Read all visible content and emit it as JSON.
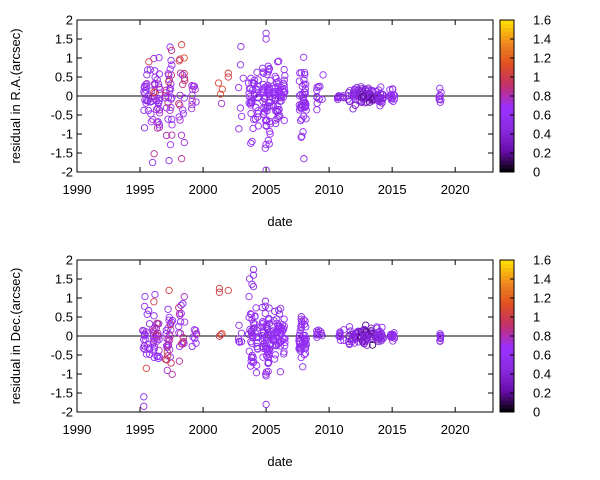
{
  "chart_data": [
    {
      "type": "scatter",
      "xlabel": "date",
      "ylabel": "residual in R.A.(arcsec)",
      "xlim": [
        1990,
        2023
      ],
      "ylim": [
        -2,
        2
      ],
      "xticks": [
        "1990",
        "1995",
        "2000",
        "2005",
        "2010",
        "2015",
        "2020"
      ],
      "yticks": [
        "-2",
        "-1.5",
        "-1",
        "-0.5",
        "0",
        "0.5",
        "1",
        "1.5",
        "2"
      ],
      "colorbar": {
        "range": [
          0,
          1.6
        ],
        "ticks": [
          "0",
          "0.2",
          "0.4",
          "0.6",
          "0.8",
          "1",
          "1.2",
          "1.4",
          "1.6"
        ],
        "palette": [
          "#000000",
          "#6a0dad",
          "#8a2be2",
          "#9b30ff",
          "#c0306a",
          "#e05020",
          "#f08c20",
          "#ffe000"
        ]
      },
      "zero_line": true,
      "clusters": [
        {
          "x": 1995.6,
          "spread": 0.3,
          "n": 26,
          "ysd": 0.45,
          "cmin": 0.45,
          "cmax": 0.75
        },
        {
          "x": 1996.3,
          "spread": 0.3,
          "n": 34,
          "ysd": 0.45,
          "cmin": 0.45,
          "cmax": 0.9
        },
        {
          "x": 1997.3,
          "spread": 0.3,
          "n": 30,
          "ysd": 0.55,
          "cmin": 0.45,
          "cmax": 1.0
        },
        {
          "x": 1998.3,
          "spread": 0.25,
          "n": 18,
          "ysd": 0.6,
          "cmin": 0.5,
          "cmax": 1.1
        },
        {
          "x": 1999.3,
          "spread": 0.2,
          "n": 10,
          "ysd": 0.2,
          "cmin": 0.5,
          "cmax": 0.9
        },
        {
          "x": 2001.5,
          "spread": 0.3,
          "n": 4,
          "ysd": 0.3,
          "cmin": 0.7,
          "cmax": 1.1
        },
        {
          "x": 2003,
          "spread": 0.2,
          "n": 6,
          "ysd": 0.6,
          "cmin": 0.45,
          "cmax": 0.65
        },
        {
          "x": 2004,
          "spread": 0.4,
          "n": 40,
          "ysd": 0.45,
          "cmin": 0.45,
          "cmax": 0.7
        },
        {
          "x": 2005,
          "spread": 0.35,
          "n": 55,
          "ysd": 0.55,
          "cmin": 0.45,
          "cmax": 0.7
        },
        {
          "x": 2006,
          "spread": 0.5,
          "n": 60,
          "ysd": 0.35,
          "cmin": 0.45,
          "cmax": 0.7
        },
        {
          "x": 2007.9,
          "spread": 0.3,
          "n": 45,
          "ysd": 0.45,
          "cmin": 0.45,
          "cmax": 0.65
        },
        {
          "x": 2009.3,
          "spread": 0.3,
          "n": 12,
          "ysd": 0.2,
          "cmin": 0.45,
          "cmax": 0.6
        },
        {
          "x": 2010.9,
          "spread": 0.3,
          "n": 10,
          "ysd": 0.05,
          "cmin": 0.45,
          "cmax": 0.6
        },
        {
          "x": 2012,
          "spread": 0.5,
          "n": 30,
          "ysd": 0.1,
          "cmin": 0.3,
          "cmax": 0.6
        },
        {
          "x": 2013,
          "spread": 0.5,
          "n": 40,
          "ysd": 0.12,
          "cmin": 0.1,
          "cmax": 0.6
        },
        {
          "x": 2014,
          "spread": 0.3,
          "n": 24,
          "ysd": 0.1,
          "cmin": 0.3,
          "cmax": 0.6
        },
        {
          "x": 2015,
          "spread": 0.2,
          "n": 14,
          "ysd": 0.12,
          "cmin": 0.45,
          "cmax": 0.6
        },
        {
          "x": 2018.8,
          "spread": 0.1,
          "n": 8,
          "ysd": 0.08,
          "cmin": 0.45,
          "cmax": 0.6
        }
      ],
      "outliers": [
        {
          "x": 1998.3,
          "y": 1.35,
          "c": 1.05
        },
        {
          "x": 1997.5,
          "y": 1.2,
          "c": 0.9
        },
        {
          "x": 1995.7,
          "y": 0.9,
          "c": 1.0
        },
        {
          "x": 1996.1,
          "y": 0.1,
          "c": 1.05
        },
        {
          "x": 1998.5,
          "y": 1.0,
          "c": 1.1
        },
        {
          "x": 2005,
          "y": 1.65,
          "c": 0.5
        },
        {
          "x": 2005,
          "y": 1.5,
          "c": 0.5
        },
        {
          "x": 2003,
          "y": 1.3,
          "c": 0.5
        },
        {
          "x": 2005,
          "y": -1.95,
          "c": 0.5
        },
        {
          "x": 2008,
          "y": -1.65,
          "c": 0.5
        },
        {
          "x": 1996,
          "y": -1.75,
          "c": 0.5
        },
        {
          "x": 1997.3,
          "y": -1.7,
          "c": 0.5
        },
        {
          "x": 1998.3,
          "y": -1.65,
          "c": 0.85
        },
        {
          "x": 2002,
          "y": 0.6,
          "c": 1.05
        },
        {
          "x": 2002,
          "y": 0.5,
          "c": 1.0
        }
      ]
    },
    {
      "type": "scatter",
      "xlabel": "date",
      "ylabel": "residual in Dec.(arcsec)",
      "xlim": [
        1990,
        2023
      ],
      "ylim": [
        -2,
        2
      ],
      "xticks": [
        "1990",
        "1995",
        "2000",
        "2005",
        "2010",
        "2015",
        "2020"
      ],
      "yticks": [
        "-2",
        "-1.5",
        "-1",
        "-0.5",
        "0",
        "0.5",
        "1",
        "1.5",
        "2"
      ],
      "colorbar": {
        "range": [
          0,
          1.6
        ],
        "ticks": [
          "0",
          "0.2",
          "0.4",
          "0.6",
          "0.8",
          "1",
          "1.2",
          "1.4",
          "1.6"
        ],
        "palette": [
          "#000000",
          "#6a0dad",
          "#8a2be2",
          "#9b30ff",
          "#c0306a",
          "#e05020",
          "#f08c20",
          "#ffe000"
        ]
      },
      "zero_line": true,
      "clusters": [
        {
          "x": 1995.5,
          "spread": 0.3,
          "n": 22,
          "ysd": 0.4,
          "cmin": 0.45,
          "cmax": 0.75
        },
        {
          "x": 1996.3,
          "spread": 0.3,
          "n": 32,
          "ysd": 0.4,
          "cmin": 0.45,
          "cmax": 0.9
        },
        {
          "x": 1997.3,
          "spread": 0.3,
          "n": 30,
          "ysd": 0.5,
          "cmin": 0.45,
          "cmax": 1.0
        },
        {
          "x": 1998.3,
          "spread": 0.25,
          "n": 18,
          "ysd": 0.4,
          "cmin": 0.5,
          "cmax": 1.0
        },
        {
          "x": 1999.3,
          "spread": 0.2,
          "n": 8,
          "ysd": 0.15,
          "cmin": 0.5,
          "cmax": 0.9
        },
        {
          "x": 2001.3,
          "spread": 0.2,
          "n": 3,
          "ysd": 0.1,
          "cmin": 0.9,
          "cmax": 1.1
        },
        {
          "x": 2003,
          "spread": 0.2,
          "n": 6,
          "ysd": 0.25,
          "cmin": 0.45,
          "cmax": 0.65
        },
        {
          "x": 2004,
          "spread": 0.4,
          "n": 45,
          "ysd": 0.55,
          "cmin": 0.45,
          "cmax": 0.7
        },
        {
          "x": 2005,
          "spread": 0.35,
          "n": 55,
          "ysd": 0.45,
          "cmin": 0.45,
          "cmax": 0.7
        },
        {
          "x": 2006,
          "spread": 0.5,
          "n": 60,
          "ysd": 0.3,
          "cmin": 0.45,
          "cmax": 0.7
        },
        {
          "x": 2007.9,
          "spread": 0.3,
          "n": 45,
          "ysd": 0.35,
          "cmin": 0.45,
          "cmax": 0.65
        },
        {
          "x": 2009.3,
          "spread": 0.3,
          "n": 10,
          "ysd": 0.1,
          "cmin": 0.45,
          "cmax": 0.6
        },
        {
          "x": 2010.9,
          "spread": 0.3,
          "n": 10,
          "ysd": 0.08,
          "cmin": 0.45,
          "cmax": 0.6
        },
        {
          "x": 2012,
          "spread": 0.5,
          "n": 30,
          "ysd": 0.12,
          "cmin": 0.3,
          "cmax": 0.6
        },
        {
          "x": 2013,
          "spread": 0.5,
          "n": 40,
          "ysd": 0.1,
          "cmin": 0.1,
          "cmax": 0.6
        },
        {
          "x": 2014,
          "spread": 0.3,
          "n": 24,
          "ysd": 0.1,
          "cmin": 0.3,
          "cmax": 0.6
        },
        {
          "x": 2015,
          "spread": 0.2,
          "n": 14,
          "ysd": 0.08,
          "cmin": 0.45,
          "cmax": 0.6
        },
        {
          "x": 2018.8,
          "spread": 0.1,
          "n": 8,
          "ysd": 0.06,
          "cmin": 0.45,
          "cmax": 0.6
        }
      ],
      "outliers": [
        {
          "x": 2001.3,
          "y": 1.25,
          "c": 1.05
        },
        {
          "x": 2001.3,
          "y": 1.15,
          "c": 1.0
        },
        {
          "x": 1997.3,
          "y": 1.2,
          "c": 1.05
        },
        {
          "x": 1996.1,
          "y": 0.9,
          "c": 1.0
        },
        {
          "x": 1995.5,
          "y": -0.85,
          "c": 1.05
        },
        {
          "x": 1998.3,
          "y": -0.2,
          "c": 1.0
        },
        {
          "x": 2004,
          "y": 1.75,
          "c": 0.5
        },
        {
          "x": 2004,
          "y": 1.6,
          "c": 0.5
        },
        {
          "x": 2004,
          "y": 1.3,
          "c": 0.5
        },
        {
          "x": 1995.3,
          "y": -1.6,
          "c": 0.5
        },
        {
          "x": 1995.3,
          "y": -1.85,
          "c": 0.5
        },
        {
          "x": 2005,
          "y": -1.8,
          "c": 0.5
        },
        {
          "x": 2005,
          "y": -1.05,
          "c": 0.5
        },
        {
          "x": 1998.4,
          "y": 0.85,
          "c": 0.55
        },
        {
          "x": 2002,
          "y": 1.2,
          "c": 1.05
        }
      ]
    }
  ]
}
